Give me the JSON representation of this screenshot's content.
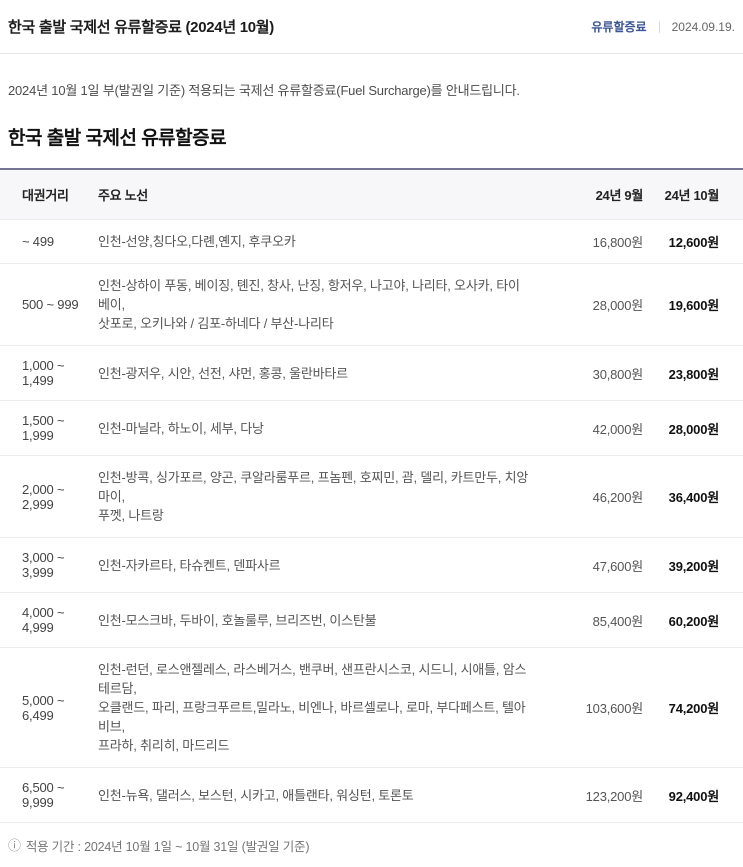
{
  "post": {
    "title": "한국 출발 국제선 유류할증료 (2024년 10월)",
    "category_label": "유류할증료",
    "date": "2024.09.19.",
    "description": "2024년 10월 1일 부(발권일 기준) 적용되는 국제선 유류할증료(Fuel Surcharge)를 안내드립니다.",
    "section_title": "한국 출발 국제선 유류할증료",
    "info_icon": "ⓘ",
    "footer_note": "적용 기간 : 2024년 10월 1일 ~ 10월 31일 (발권일 기준)"
  },
  "table": {
    "headers": [
      "대권거리",
      "주요 노선",
      "24년 9월",
      "24년 10월"
    ],
    "rows": [
      {
        "distance": "~ 499",
        "routes": "인천-선양,칭다오,다롄,옌지, 후쿠오카",
        "sep_price": "16,800원",
        "oct_price": "12,600원"
      },
      {
        "distance": "500 ~ 999",
        "routes": "인천-상하이 푸동, 베이징, 톈진, 창사, 난징, 항저우, 나고야, 나리타, 오사카, 타이베이,\n삿포로, 오키나와 / 김포-하네다 / 부산-나리타",
        "sep_price": "28,000원",
        "oct_price": "19,600원"
      },
      {
        "distance": "1,000 ~ 1,499",
        "routes": "인천-광저우, 시안, 선전, 샤먼, 홍콩, 울란바타르",
        "sep_price": "30,800원",
        "oct_price": "23,800원"
      },
      {
        "distance": "1,500 ~ 1,999",
        "routes": "인천-마닐라, 하노이, 세부, 다낭",
        "sep_price": "42,000원",
        "oct_price": "28,000원"
      },
      {
        "distance": "2,000 ~ 2,999",
        "routes": "인천-방콕, 싱가포르, 양곤, 쿠알라룸푸르, 프놈펜, 호찌민, 괌, 델리, 카트만두, 치앙마이,\n푸껫, 나트랑",
        "sep_price": "46,200원",
        "oct_price": "36,400원"
      },
      {
        "distance": "3,000 ~ 3,999",
        "routes": "인천-자카르타, 타슈켄트, 덴파사르",
        "sep_price": "47,600원",
        "oct_price": "39,200원"
      },
      {
        "distance": "4,000 ~ 4,999",
        "routes": "인천-모스크바, 두바이, 호놀룰루, 브리즈번, 이스탄불",
        "sep_price": "85,400원",
        "oct_price": "60,200원"
      },
      {
        "distance": "5,000 ~ 6,499",
        "routes": "인천-런던, 로스앤젤레스, 라스베거스, 밴쿠버, 샌프란시스코, 시드니, 시애틀, 암스테르담,\n오클랜드, 파리, 프랑크푸르트,밀라노, 비엔나, 바르셀로나, 로마, 부다페스트, 텔아비브,\n프라하, 취리히, 마드리드",
        "sep_price": "103,600원",
        "oct_price": "74,200원"
      },
      {
        "distance": "6,500 ~ 9,999",
        "routes": "인천-뉴욕, 댈러스, 보스턴, 시카고, 애틀랜타, 워싱턴, 토론토",
        "sep_price": "123,200원",
        "oct_price": "92,400원"
      }
    ]
  },
  "colors": {
    "category_link": "#3c5596",
    "table_top_border": "#767693",
    "header_row_bg": "#f7f7f9",
    "oct_price_text": "#111111"
  }
}
